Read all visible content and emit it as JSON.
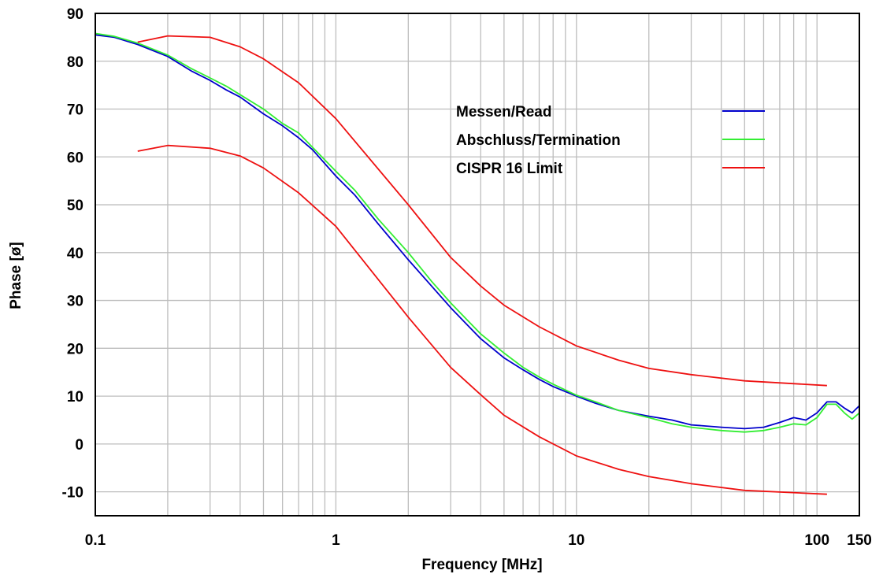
{
  "chart_data": {
    "type": "line",
    "xlabel": "Frequency [MHz]",
    "ylabel": "Phase [ø]",
    "xscale": "log",
    "xlim": [
      0.1,
      150
    ],
    "ylim": [
      -15,
      90
    ],
    "grid": true,
    "legend_position": "upper-right inside plot",
    "x_ticks": [
      {
        "value": 0.1,
        "label": "0.1"
      },
      {
        "value": 1,
        "label": "1"
      },
      {
        "value": 10,
        "label": "10"
      },
      {
        "value": 100,
        "label": "100"
      },
      {
        "value": 150,
        "label": "150"
      }
    ],
    "y_ticks": [
      {
        "value": 90,
        "label": "90"
      },
      {
        "value": 80,
        "label": "80"
      },
      {
        "value": 70,
        "label": "70"
      },
      {
        "value": 60,
        "label": "60"
      },
      {
        "value": 50,
        "label": "50"
      },
      {
        "value": 40,
        "label": "40"
      },
      {
        "value": 30,
        "label": "30"
      },
      {
        "value": 20,
        "label": "20"
      },
      {
        "value": 10,
        "label": "10"
      },
      {
        "value": 0,
        "label": "0"
      },
      {
        "value": -10,
        "label": "-10"
      }
    ],
    "series": [
      {
        "name": "Messen/Read",
        "color": "#0000cc",
        "x": [
          0.1,
          0.12,
          0.15,
          0.2,
          0.25,
          0.3,
          0.35,
          0.4,
          0.5,
          0.6,
          0.7,
          0.8,
          1,
          1.2,
          1.5,
          2,
          2.5,
          3,
          3.5,
          4,
          5,
          6,
          7,
          8,
          10,
          12,
          15,
          20,
          25,
          30,
          40,
          50,
          60,
          70,
          80,
          90,
          100,
          110,
          120,
          130,
          140,
          150
        ],
        "y": [
          85.5,
          85,
          83.5,
          81,
          78,
          76,
          74,
          72.5,
          69,
          66.5,
          64,
          61.5,
          56,
          52,
          46,
          38.5,
          33,
          28.5,
          25,
          22,
          18,
          15.5,
          13.5,
          12,
          10,
          8.5,
          7,
          5.8,
          5,
          4,
          3.5,
          3.2,
          3.5,
          4.5,
          5.5,
          5,
          6.5,
          8.8,
          8.8,
          7.5,
          6.5,
          8
        ]
      },
      {
        "name": "Abschluss/Termination",
        "color": "#33ee33",
        "x": [
          0.1,
          0.12,
          0.15,
          0.2,
          0.25,
          0.3,
          0.35,
          0.4,
          0.5,
          0.6,
          0.7,
          0.8,
          1,
          1.2,
          1.5,
          2,
          2.5,
          3,
          3.5,
          4,
          5,
          6,
          7,
          8,
          10,
          12,
          15,
          20,
          25,
          30,
          40,
          50,
          60,
          70,
          80,
          90,
          100,
          110,
          120,
          130,
          140,
          150
        ],
        "y": [
          85.8,
          85.2,
          83.8,
          81.3,
          78.5,
          76.5,
          74.8,
          73,
          70,
          67,
          65,
          62,
          57,
          53,
          47,
          40,
          34,
          29.5,
          26,
          23,
          19,
          16,
          14,
          12.5,
          10.2,
          8.8,
          7,
          5.5,
          4.2,
          3.5,
          2.8,
          2.5,
          2.8,
          3.5,
          4.2,
          4,
          5.5,
          8.3,
          8.3,
          6.5,
          5.2,
          6.5
        ]
      },
      {
        "name": "CISPR 16 Limit",
        "color": "#ee1111",
        "x": [
          0.15,
          0.2,
          0.3,
          0.4,
          0.5,
          0.7,
          1,
          2,
          3,
          4,
          5,
          7,
          10,
          15,
          20,
          30,
          50,
          110
        ],
        "y": [
          84,
          85.3,
          85,
          83,
          80.5,
          75.5,
          68,
          50,
          39,
          33,
          29,
          24.5,
          20.5,
          17.5,
          15.8,
          14.5,
          13.2,
          12.2
        ]
      },
      {
        "name": "CISPR 16 Limit",
        "color": "#ee1111",
        "x": [
          0.15,
          0.2,
          0.3,
          0.4,
          0.5,
          0.7,
          1,
          2,
          3,
          4,
          5,
          7,
          10,
          15,
          20,
          30,
          50,
          110
        ],
        "y": [
          61.2,
          62.4,
          61.8,
          60.2,
          57.7,
          52.5,
          45.5,
          26.5,
          16,
          10.3,
          6,
          1.5,
          -2.5,
          -5.3,
          -6.8,
          -8.3,
          -9.7,
          -10.5
        ]
      }
    ],
    "legend": [
      {
        "label": "Messen/Read",
        "color": "#0000cc"
      },
      {
        "label": "Abschluss/Termination",
        "color": "#33ee33"
      },
      {
        "label": "CISPR 16 Limit",
        "color": "#ee1111"
      }
    ]
  }
}
